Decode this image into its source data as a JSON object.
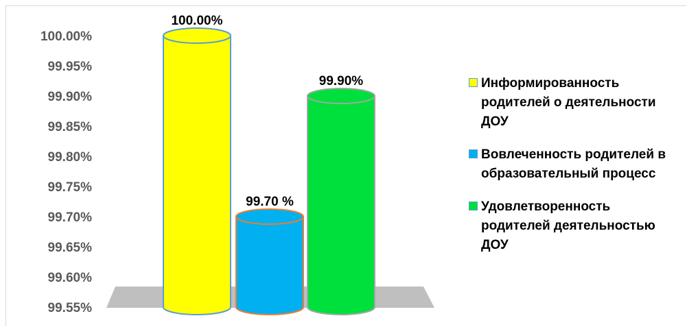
{
  "chart_data": {
    "type": "bar",
    "style": "3d-cylinder",
    "categories": [
      "Информированность родителей о деятельности ДОУ",
      "Вовлеченность родителей в образовательный процесс",
      "Удовлетворенность родителей деятельностью ДОУ"
    ],
    "values": [
      100.0,
      99.7,
      99.9
    ],
    "data_labels": [
      "100.00%",
      "99.70 %",
      "99.90%"
    ],
    "colors": [
      "#ffff00",
      "#00b0f0",
      "#00e03c"
    ],
    "outline_colors": [
      "#5b9bd5",
      "#ed7d31",
      "#a5a5a5"
    ],
    "ylim": [
      99.55,
      100.0
    ],
    "y_ticks": [
      "99.55%",
      "99.60%",
      "99.65%",
      "99.70%",
      "99.75%",
      "99.80%",
      "99.85%",
      "99.90%",
      "99.95%",
      "100.00%"
    ],
    "legend_position": "right",
    "grid": false,
    "floor_color": "#bfbfbf",
    "title": "",
    "xlabel": "",
    "ylabel": ""
  }
}
